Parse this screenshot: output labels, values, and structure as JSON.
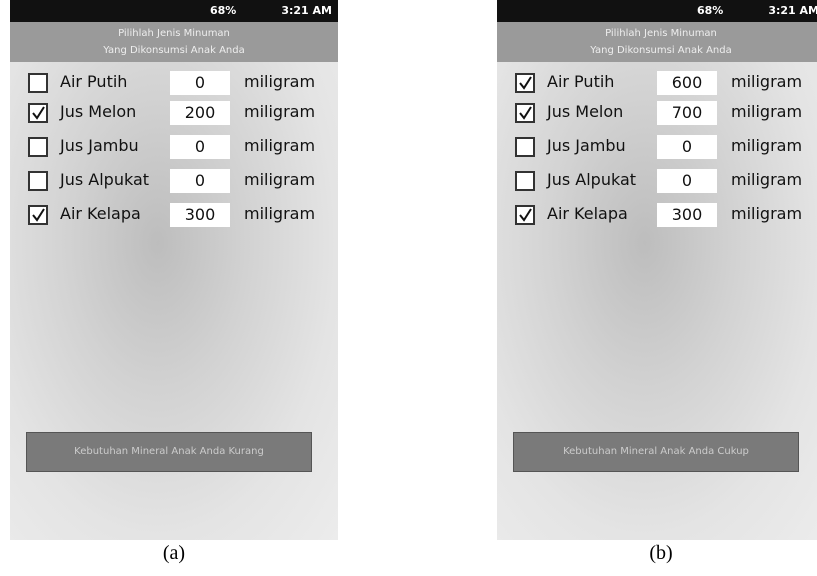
{
  "screens": [
    {
      "status": {
        "battery": "68%",
        "time": "3:21 AM"
      },
      "header": {
        "line1": "Pilihlah Jenis Minuman",
        "line2": "Yang Dikonsumsi Anak Anda"
      },
      "items": [
        {
          "checked": false,
          "name": "Air Putih",
          "value": 0,
          "unit": "miligram"
        },
        {
          "checked": true,
          "name": "Jus Melon",
          "value": 200,
          "unit": "miligram"
        },
        {
          "checked": false,
          "name": "Jus Jambu",
          "value": 0,
          "unit": "miligram"
        },
        {
          "checked": false,
          "name": "Jus Alpukat",
          "value": 0,
          "unit": "miligram"
        },
        {
          "checked": true,
          "name": "Air Kelapa",
          "value": 300,
          "unit": "miligram"
        }
      ],
      "button": "Kebutuhan Mineral Anak Anda Kurang",
      "caption": "(a)"
    },
    {
      "status": {
        "battery": "68%",
        "time": "3:21 AM"
      },
      "header": {
        "line1": "Pilihlah Jenis Minuman",
        "line2": "Yang Dikonsumsi Anak Anda"
      },
      "items": [
        {
          "checked": true,
          "name": "Air Putih",
          "value": 600,
          "unit": "miligram"
        },
        {
          "checked": true,
          "name": "Jus Melon",
          "value": 700,
          "unit": "miligram"
        },
        {
          "checked": false,
          "name": "Jus Jambu",
          "value": 0,
          "unit": "miligram"
        },
        {
          "checked": false,
          "name": "Jus Alpukat",
          "value": 0,
          "unit": "miligram"
        },
        {
          "checked": true,
          "name": "Air Kelapa",
          "value": 300,
          "unit": "miligram"
        }
      ],
      "button": "Kebutuhan Mineral Anak Anda Cukup",
      "caption": "(b)"
    }
  ]
}
